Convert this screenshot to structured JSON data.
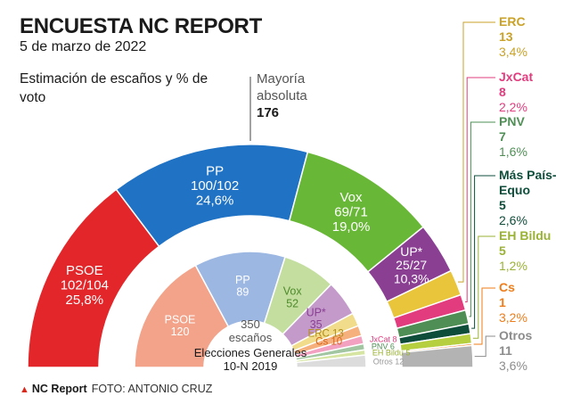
{
  "header": {
    "title": "ENCUESTA NC REPORT",
    "date": "5 de marzo de 2022",
    "subtitle": "Estimación de escaños y % de voto"
  },
  "majority": {
    "label_line1": "Mayoría",
    "label_line2": "absoluta",
    "value": "176"
  },
  "center": {
    "total": "350",
    "unit": "escaños",
    "election_line1": "Elecciones Generales",
    "election_line2": "10-N 2019"
  },
  "footer": {
    "brand": "NC Report",
    "credit": "FOTO: ANTONIO CRUZ"
  },
  "chart_data": [
    {
      "type": "parliament-donut",
      "name": "Encuesta NC Report",
      "total_seats": 350,
      "parties": [
        {
          "party": "PSOE",
          "seats_label": "102/104",
          "seats": 103,
          "vote_pct": "25,8%",
          "color": "#e3262a"
        },
        {
          "party": "PP",
          "seats_label": "100/102",
          "seats": 101,
          "vote_pct": "24,6%",
          "color": "#1f72c4"
        },
        {
          "party": "Vox",
          "seats_label": "69/71",
          "seats": 70,
          "vote_pct": "19,0%",
          "color": "#69b737"
        },
        {
          "party": "UP*",
          "seats_label": "25/27",
          "seats": 26,
          "vote_pct": "10,3%",
          "color": "#8a3f93"
        },
        {
          "party": "ERC",
          "seats_label": "13",
          "seats": 13,
          "vote_pct": "3,4%",
          "color": "#e8c53a"
        },
        {
          "party": "JxCat",
          "seats_label": "8",
          "seats": 8,
          "vote_pct": "2,2%",
          "color": "#e23c7e"
        },
        {
          "party": "PNV",
          "seats_label": "7",
          "seats": 7,
          "vote_pct": "1,6%",
          "color": "#4f8f55"
        },
        {
          "party": "Más País-Equo",
          "name_line1": "Más País-",
          "name_line2": "Equo",
          "seats_label": "5",
          "seats": 5,
          "vote_pct": "2,6%",
          "color": "#0f4d3b"
        },
        {
          "party": "EH Bildu",
          "seats_label": "5",
          "seats": 5,
          "vote_pct": "1,2%",
          "color": "#b5cf3e"
        },
        {
          "party": "Cs",
          "seats_label": "1",
          "seats": 1,
          "vote_pct": "3,2%",
          "color": "#ef7d1a"
        },
        {
          "party": "Otros",
          "seats_label": "11",
          "seats": 11,
          "vote_pct": "3,6%",
          "color": "#b3b3b3"
        }
      ]
    },
    {
      "type": "parliament-donut",
      "name": "Elecciones Generales 10-N 2019",
      "total_seats": 350,
      "parties": [
        {
          "party": "PSOE",
          "seats": 120,
          "color": "#f2a38a"
        },
        {
          "party": "PP",
          "seats": 89,
          "color": "#9db7e3"
        },
        {
          "party": "Vox",
          "seats": 52,
          "color": "#c4dea0"
        },
        {
          "party": "UP*",
          "seats": 35,
          "color": "#c49acb"
        },
        {
          "party": "ERC",
          "seats": 13,
          "color": "#f0dc8a"
        },
        {
          "party": "Cs",
          "seats": 10,
          "color": "#f6b07e"
        },
        {
          "party": "JxCat",
          "seats": 8,
          "color": "#f2a2c0"
        },
        {
          "party": "PNV",
          "seats": 6,
          "color": "#a2c6a2"
        },
        {
          "party": "EH Bildu",
          "seats": 5,
          "color": "#d6e6a2"
        },
        {
          "party": "Otros",
          "seats": 12,
          "color": "#dcdcdc"
        }
      ]
    }
  ]
}
